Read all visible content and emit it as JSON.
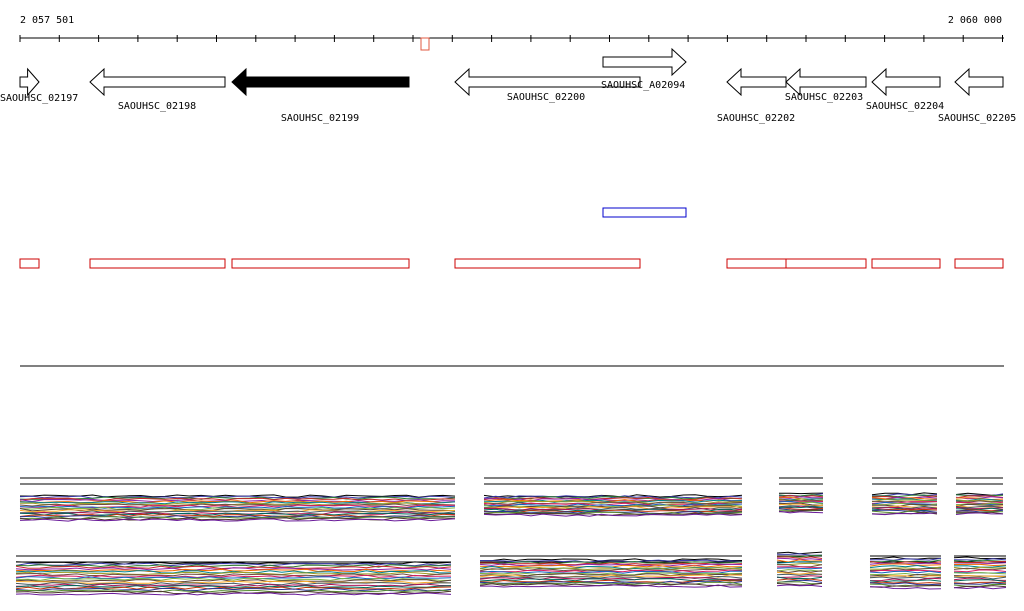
{
  "ruler": {
    "start_label": "2 057 501",
    "end_label": "2 060 000",
    "start_bp": 2057501,
    "end_bp": 2060000
  },
  "colors": {
    "gene_fill": "#ffffff",
    "gene_stroke": "#000000",
    "selected_fill": "#000000",
    "feature_box": "#cc0000",
    "sRNA_box": "#0000cc",
    "marker": "#e05a40"
  },
  "genes": [
    {
      "name": "SAOUHSC_02197",
      "selected": false
    },
    {
      "name": "SAOUHSC_02198",
      "selected": false
    },
    {
      "name": "SAOUHSC_02199",
      "selected": true
    },
    {
      "name": "SAOUHSC_02200",
      "selected": false
    },
    {
      "name": "SAOUHSC_A02094",
      "selected": false
    },
    {
      "name": "SAOUHSC_02202",
      "selected": false
    },
    {
      "name": "SAOUHSC_02203",
      "selected": false
    },
    {
      "name": "SAOUHSC_02204",
      "selected": false
    },
    {
      "name": "SAOUHSC_02205",
      "selected": false
    }
  ],
  "tracks": {
    "expression_series_count": 22,
    "series_palette": [
      "#000000",
      "#3a3aa8",
      "#2e7d32",
      "#c62828",
      "#8e24aa",
      "#ef6c00",
      "#00838f",
      "#9e9d24",
      "#6d4c41",
      "#d81b60",
      "#1565c0",
      "#7cb342",
      "#5d4037",
      "#f9a825",
      "#455a64",
      "#ad1457",
      "#00695c",
      "#bf360c",
      "#283593",
      "#558b2f",
      "#4e342e",
      "#6a1b9a"
    ]
  }
}
